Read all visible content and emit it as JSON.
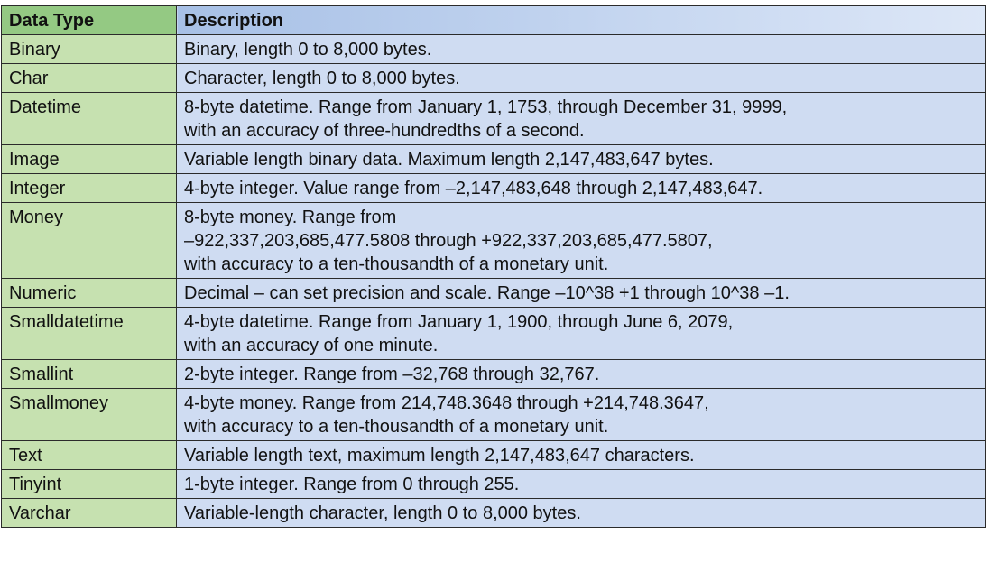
{
  "table": {
    "headers": [
      "Data Type",
      "Description"
    ],
    "rows": [
      {
        "type": "Binary",
        "description": "Binary, length 0 to 8,000 bytes."
      },
      {
        "type": "Char",
        "description": "Character, length 0 to 8,000 bytes."
      },
      {
        "type": "Datetime",
        "description": "8-byte datetime.  Range from January 1, 1753, through December 31, 9999,\nwith an accuracy of three-hundredths of a second."
      },
      {
        "type": "Image",
        "description": "Variable length binary data.  Maximum length 2,147,483,647 bytes."
      },
      {
        "type": "Integer",
        "description": "4-byte integer.  Value range from –2,147,483,648 through 2,147,483,647."
      },
      {
        "type": "Money",
        "description": "8-byte money.  Range from\n–922,337,203,685,477.5808 through  +922,337,203,685,477.5807,\nwith accuracy to a ten-thousandth of a monetary unit."
      },
      {
        "type": "Numeric",
        "description": "Decimal – can set precision and scale.  Range –10^38 +1 through 10^38 –1."
      },
      {
        "type": "Smalldatetime",
        "description": "4-byte datetime. Range from January 1, 1900, through June 6, 2079,\nwith an accuracy of one minute."
      },
      {
        "type": "Smallint",
        "description": "2-byte integer.  Range from –32,768 through 32,767."
      },
      {
        "type": "Smallmoney",
        "description": "4-byte money.  Range from 214,748.3648 through +214,748.3647,\nwith accuracy to a ten-thousandth of a monetary unit."
      },
      {
        "type": "Text",
        "description": "Variable length text, maximum length 2,147,483,647 characters."
      },
      {
        "type": "Tinyint",
        "description": "1-byte integer.  Range from 0 through 255."
      },
      {
        "type": "Varchar",
        "description": "Variable-length character, length 0 to 8,000 bytes."
      }
    ]
  },
  "colors": {
    "header_type_bg": "#94c983",
    "header_desc_bg": "#b6cbeb",
    "type_cell_bg": "#c6e1b0",
    "desc_cell_bg": "#cfdcf2",
    "border": "#2b2b2b"
  }
}
